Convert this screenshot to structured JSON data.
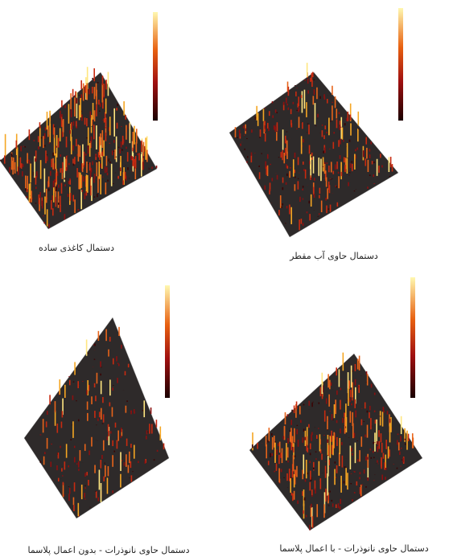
{
  "panels": [
    {
      "caption": "دستمال کاغذی ساده"
    },
    {
      "caption": "دستمال حاوی آب مقطر"
    },
    {
      "caption": "دستمال حاوی نانوذرات - بدون اعمال پلاسما"
    },
    {
      "caption": "دستمال حاوی نانوذرات - با اعمال پلاسما"
    }
  ]
}
